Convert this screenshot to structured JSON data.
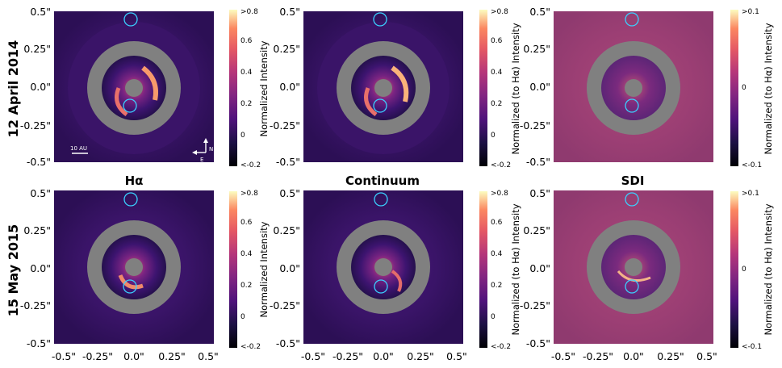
{
  "figure": {
    "row_labels": [
      "12 April 2014",
      "15 May 2015"
    ],
    "column_titles": [
      "Hα",
      "Continuum",
      "SDI"
    ],
    "axis_ticks_y": [
      "0.5\"",
      "0.25\"",
      "0.0\"",
      "-0.25\"",
      "-0.5\""
    ],
    "axis_ticks_x": [
      "-0.5\"",
      "-0.25\"",
      "0.0\"",
      "0.25\"",
      "0.5\""
    ],
    "colorbars": [
      {
        "label": "Normalized Intensity",
        "ticks": [
          ">0.8",
          "0.6",
          "0.4",
          "0.2",
          "0",
          "<-0.2"
        ]
      },
      {
        "label": "Normalized (to Hα) Intensity",
        "ticks": [
          ">0.8",
          "0.6",
          "0.4",
          "0.2",
          "0",
          "<-0.2"
        ]
      },
      {
        "label": "Normalized (to Hα) Intensity",
        "ticks": [
          ">0.1",
          "0",
          "<-0.1"
        ]
      }
    ],
    "scale_bar_label": "10 AU",
    "compass": {
      "north": "N",
      "east": "E"
    },
    "colors": {
      "ring": "#808080",
      "circle_marker": "#3ad1ff",
      "background_dark": "#2a0f4f",
      "background_sdi": "#9a4170"
    }
  }
}
